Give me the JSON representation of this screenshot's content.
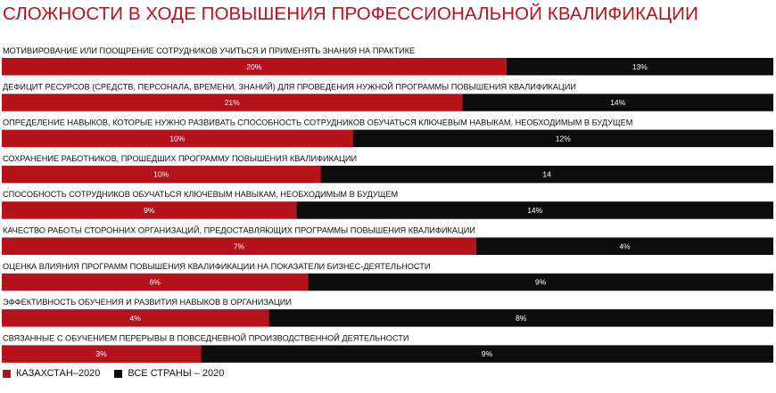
{
  "title": "СЛОЖНОСТИ В ХОДЕ ПОВЫШЕНИЯ ПРОФЕССИОНАЛЬНОЙ КВАЛИФИКАЦИИ",
  "colors": {
    "kazakhstan": "#b5121b",
    "all_countries": "#0d0d0d",
    "title": "#b5121b"
  },
  "chart_data": {
    "type": "bar",
    "orientation": "horizontal-stacked",
    "title": "СЛОЖНОСТИ В ХОДЕ ПОВЫШЕНИЯ ПРОФЕССИОНАЛЬНОЙ КВАЛИФИКАЦИИ",
    "categories": [
      "МОТИВИРОВАНИЕ ИЛИ ПООЩРЕНИЕ СОТРУДНИКОВ УЧИТЬСЯ И ПРИМЕНЯТЬ ЗНАНИЯ НА ПРАКТИКЕ",
      "ДЕФИЦИТ РЕСУРСОВ (СРЕДСТВ, ПЕРСОНАЛА, ВРЕМЕНИ, ЗНАНИЙ) ДЛЯ ПРОВЕДЕНИЯ НУЖНОЙ ПРОГРАММЫ ПОВЫШЕНИЯ КВАЛИФИКАЦИИ",
      "ОПРЕДЕЛЕНИЕ НАВЫКОВ, КОТОРЫЕ НУЖНО РАЗВИВАТЬ СПОСОБНОСТЬ СОТРУДНИКОВ ОБУЧАТЬСЯ КЛЮЧЕВЫМ НАВЫКАМ, НЕОБХОДИМЫМ В БУДУЩЕМ",
      "СОХРАНЕНИЕ РАБОТНИКОВ, ПРОШЕДШИХ ПРОГРАММУ ПОВЫШЕНИЯ КВАЛИФИКАЦИИ",
      "СПОСОБНОСТЬ СОТРУДНИКОВ ОБУЧАТЬСЯ КЛЮЧЕВЫМ НАВЫКАМ, НЕОБХОДИМЫМ В БУДУЩЕМ",
      "КАЧЕСТВО РАБОТЫ СТОРОННИХ ОРГАНИЗАЦИЙ, ПРЕДОСТАВЛЯЮЩИХ ПРОГРАММЫ ПОВЫШЕНИЯ КВАЛИФИКАЦИИ",
      "ОЦЕНКА ВЛИЯНИЯ ПРОГРАММ ПОВЫШЕНИЯ КВАЛИФИКАЦИИ НА ПОКАЗАТЕЛИ БИЗНЕС-ДЕЯТЕЛЬНОСТИ",
      "ЭФФЕКТИВНОСТЬ ОБУЧЕНИЯ И РАЗВИТИЯ НАВЫКОВ В ОРГАНИЗАЦИИ",
      "СВЯЗАННЫЕ С ОБУЧЕНИЕМ ПЕРЕРЫВЫ В ПОВСЕДНЕВНОЙ ПРОИЗВОДСТВЕННОЙ ДЕЯТЕЛЬНОСТИ"
    ],
    "series": [
      {
        "name": "КАЗАХСТАН–2020",
        "values": [
          20,
          21,
          10,
          10,
          9,
          7,
          6,
          4,
          3
        ],
        "labels": [
          "20%",
          "21%",
          "10%",
          "10%",
          "9%",
          "7%",
          "6%",
          "4%",
          "3%"
        ],
        "color": "#b5121b"
      },
      {
        "name": "ВСЕ СТРАНЫ – 2020",
        "values": [
          13,
          14,
          12,
          14,
          14,
          4,
          9,
          8,
          9
        ],
        "labels": [
          "13%",
          "14%",
          "12%",
          "14",
          "14%",
          "4%",
          "9%",
          "8%",
          "9%"
        ],
        "color": "#0d0d0d"
      }
    ],
    "red_bar_share": [
      0.654,
      0.597,
      0.455,
      0.413,
      0.382,
      0.615,
      0.397,
      0.346,
      0.258
    ],
    "xlabel": "",
    "ylabel": "",
    "grid": false,
    "legend_position": "bottom-left"
  },
  "legend": {
    "kazakhstan": "КАЗАХСТАН–2020",
    "all_countries": "ВСЕ СТРАНЫ – 2020"
  }
}
